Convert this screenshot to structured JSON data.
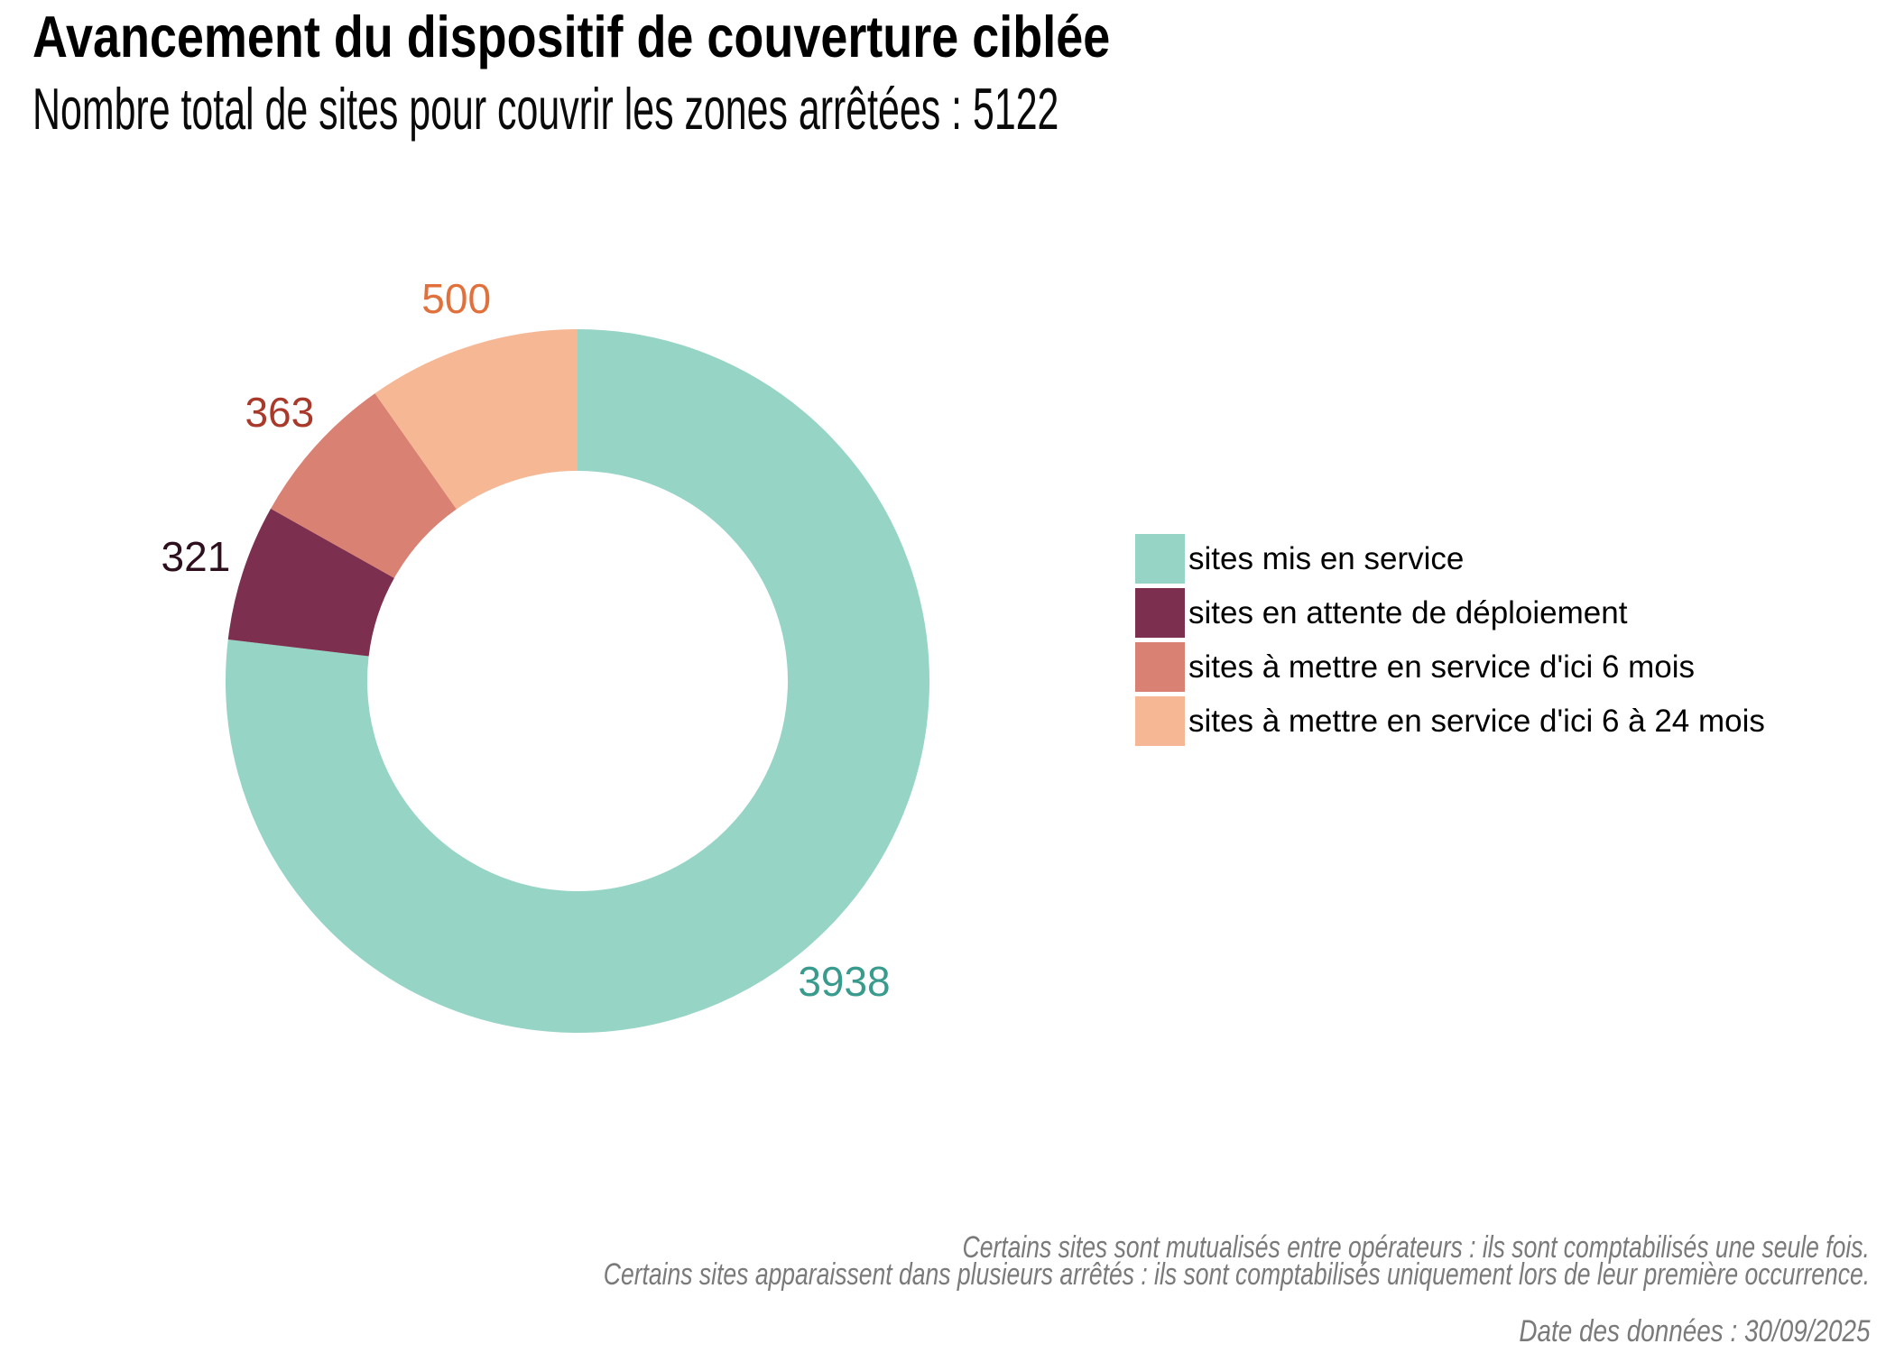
{
  "title": "Avancement du dispositif de couverture ciblée",
  "subtitle": "Nombre total de sites pour couvrir les zones arrêtées : 5122",
  "total_sites": 5122,
  "chart_data": {
    "type": "pie",
    "subtype": "donut",
    "title": "Avancement du dispositif de couverture ciblée",
    "total": 5122,
    "start_angle_deg": 0,
    "direction": "clockwise",
    "legend_position": "right",
    "segments": [
      {
        "label": "sites mis en service",
        "value": 3938,
        "color": "#96d4c6",
        "label_color": "#399b8d"
      },
      {
        "label": "sites en attente de déploiement",
        "value": 321,
        "color": "#7c2f4f",
        "label_color": "#2e0f1e"
      },
      {
        "label": "sites à mettre en service d'ici 6 mois",
        "value": 363,
        "color": "#d98172",
        "label_color": "#a93a2b"
      },
      {
        "label": "sites à mettre en service d'ici 6 à 24 mois",
        "value": 500,
        "color": "#f6b795",
        "label_color": "#e0713c"
      }
    ]
  },
  "footnotes": [
    "Certains sites sont mutualisés entre opérateurs : ils sont comptabilisés une seule fois.",
    "Certains sites apparaissent dans plusieurs arrêtés : ils sont comptabilisés uniquement lors de leur première occurrence."
  ],
  "date_note": "Date des données : 30/09/2025"
}
